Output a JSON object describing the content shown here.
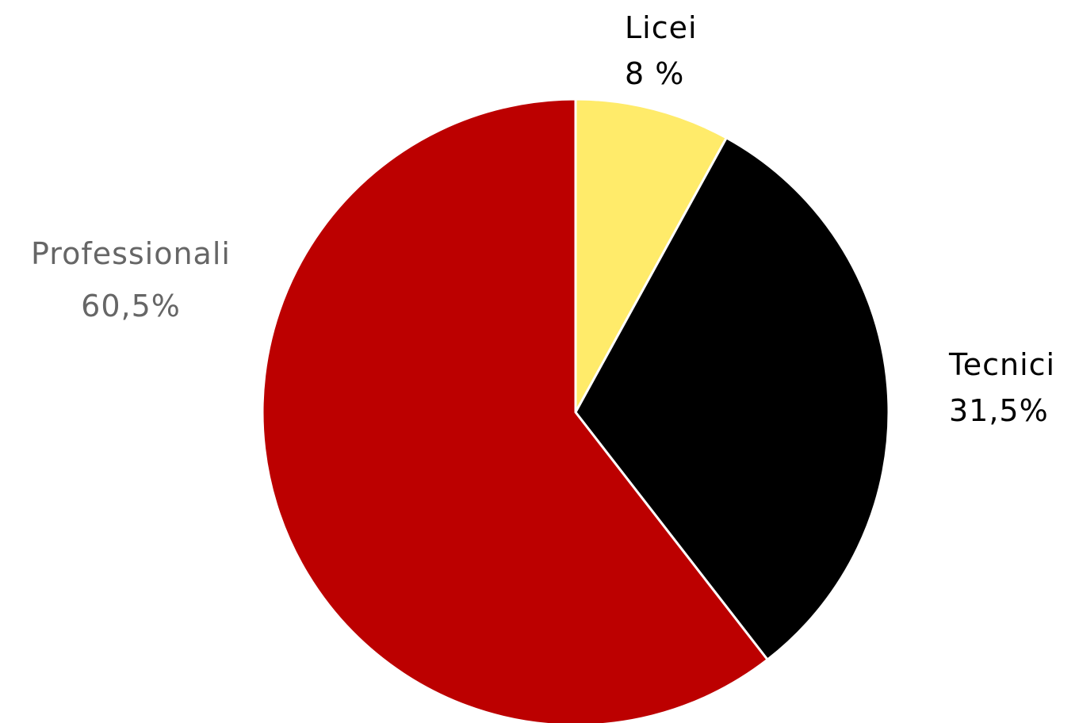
{
  "chart_data": {
    "type": "pie",
    "slices": [
      {
        "name": "Licei",
        "value": 8,
        "label": "8 %",
        "color": "#FFEB6A",
        "label_color": "#000000"
      },
      {
        "name": "Tecnici",
        "value": 31.5,
        "label": "31,5%",
        "color": "#000000",
        "label_color": "#000000"
      },
      {
        "name": "Professionali",
        "value": 60.5,
        "label": "60,5%",
        "color": "#BC0000",
        "label_color": "#666666"
      }
    ],
    "start_angle": "12 o'clock",
    "direction": "clockwise"
  }
}
